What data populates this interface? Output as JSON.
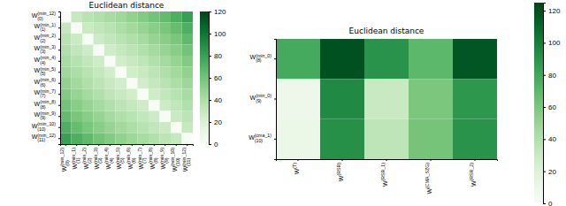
{
  "chart_data": [
    {
      "type": "heatmap",
      "title": "Euclidean distance",
      "color": "Greens",
      "x_labels": [
        {
          "base": "W",
          "sup": "(min_12)",
          "sub": "(0)"
        },
        {
          "base": "W",
          "sup": "(min_1)",
          "sub": "(1)"
        },
        {
          "base": "W",
          "sup": "(min_2)",
          "sub": "(2)"
        },
        {
          "base": "W",
          "sup": "(min_3)",
          "sub": "(3)"
        },
        {
          "base": "W",
          "sup": "(min_4)",
          "sub": "(4)"
        },
        {
          "base": "W",
          "sup": "(min_5)",
          "sub": "(5)"
        },
        {
          "base": "W",
          "sup": "(min_6)",
          "sub": "(6)"
        },
        {
          "base": "W",
          "sup": "(min_7)",
          "sub": "(7)"
        },
        {
          "base": "W",
          "sup": "(min_8)",
          "sub": "(8)"
        },
        {
          "base": "W",
          "sup": "(min_9)",
          "sub": "(9)"
        },
        {
          "base": "W",
          "sup": "(min_10)",
          "sub": "(10)"
        },
        {
          "base": "W",
          "sup": "(min_12)",
          "sub": "(11)"
        }
      ],
      "y_labels": [
        {
          "base": "W",
          "sup": "(min_12)",
          "sub": "(0)"
        },
        {
          "base": "W",
          "sup": "(min_1)",
          "sub": "(1)"
        },
        {
          "base": "W",
          "sup": "(min_2)",
          "sub": "(2)"
        },
        {
          "base": "W",
          "sup": "(min_3)",
          "sub": "(3)"
        },
        {
          "base": "W",
          "sup": "(min_4)",
          "sub": "(4)"
        },
        {
          "base": "W",
          "sup": "(min_5)",
          "sub": "(5)"
        },
        {
          "base": "W",
          "sup": "(min_6)",
          "sub": "(6)"
        },
        {
          "base": "W",
          "sup": "(min_7)",
          "sub": "(7)"
        },
        {
          "base": "W",
          "sup": "(min_8)",
          "sub": "(8)"
        },
        {
          "base": "W",
          "sup": "(min_9)",
          "sub": "(9)"
        },
        {
          "base": "W",
          "sup": "(min_10)",
          "sub": "(10)"
        },
        {
          "base": "W",
          "sup": "(min_12)",
          "sub": "(11)"
        }
      ],
      "values": [
        [
          0,
          30,
          35,
          38,
          42,
          45,
          50,
          55,
          60,
          65,
          72,
          80
        ],
        [
          30,
          0,
          28,
          32,
          36,
          40,
          44,
          48,
          53,
          58,
          64,
          72
        ],
        [
          35,
          28,
          0,
          27,
          31,
          35,
          39,
          43,
          48,
          53,
          58,
          66
        ],
        [
          38,
          32,
          27,
          0,
          26,
          30,
          34,
          38,
          43,
          48,
          53,
          60
        ],
        [
          42,
          36,
          31,
          26,
          0,
          25,
          29,
          33,
          38,
          43,
          48,
          55
        ],
        [
          45,
          40,
          35,
          30,
          25,
          0,
          25,
          29,
          34,
          39,
          44,
          50
        ],
        [
          50,
          44,
          39,
          34,
          29,
          25,
          0,
          25,
          30,
          35,
          40,
          46
        ],
        [
          55,
          48,
          43,
          38,
          33,
          29,
          25,
          0,
          26,
          31,
          36,
          42
        ],
        [
          60,
          53,
          48,
          43,
          38,
          34,
          30,
          26,
          0,
          27,
          32,
          38
        ],
        [
          65,
          58,
          53,
          48,
          43,
          39,
          35,
          31,
          27,
          0,
          28,
          34
        ],
        [
          72,
          64,
          58,
          53,
          48,
          44,
          40,
          36,
          32,
          28,
          0,
          30
        ],
        [
          80,
          72,
          66,
          60,
          55,
          50,
          46,
          42,
          38,
          34,
          30,
          0
        ]
      ],
      "colorbar": {
        "range": [
          0,
          120
        ],
        "ticks": [
          0,
          20,
          40,
          60,
          80,
          100,
          120
        ]
      }
    },
    {
      "type": "heatmap",
      "title": "Euclidean distance",
      "color": "Greens",
      "x_labels": [
        {
          "base": "W",
          "sup": "(T)",
          "sub": ""
        },
        {
          "base": "W",
          "sup": "(RSR)",
          "sub": ""
        },
        {
          "base": "W",
          "sup": "(RSR_1)",
          "sub": ""
        },
        {
          "base": "W",
          "sup": "(CMA_SZG)",
          "sub": ""
        },
        {
          "base": "W",
          "sup": "(RSR_2)",
          "sub": ""
        }
      ],
      "y_labels": [
        {
          "base": "W",
          "sup": "(min_0)",
          "sub": "(8)"
        },
        {
          "base": "W",
          "sup": "(min_0)",
          "sub": "(9)"
        },
        {
          "base": "W",
          "sup": "(cma_1)",
          "sub": "(10)"
        }
      ],
      "values": [
        [
          78,
          120,
          90,
          70,
          118
        ],
        [
          8,
          95,
          30,
          60,
          88
        ],
        [
          10,
          92,
          35,
          62,
          90
        ]
      ],
      "colorbar": {
        "range": [
          0,
          125
        ],
        "ticks": [
          0,
          20,
          40,
          60,
          80,
          100,
          120
        ]
      }
    }
  ]
}
